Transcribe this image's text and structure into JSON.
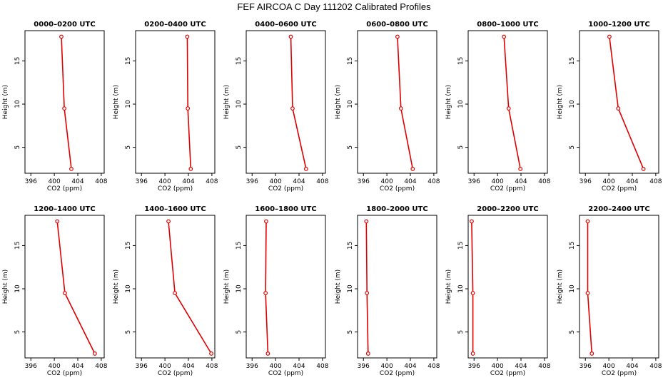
{
  "title": "FEF AIRCOA C  Day 111202  Calibrated Profiles",
  "chart_data": [
    {
      "type": "line",
      "title": "0000–0200 UTC",
      "xlabel": "CO2 (ppm)",
      "ylabel": "Height (m)",
      "xlim": [
        395,
        408.5
      ],
      "ylim": [
        2,
        18.5
      ],
      "xticks": [
        396,
        400,
        404,
        408
      ],
      "yticks": [
        5,
        10,
        15
      ],
      "series": [
        {
          "x": [
            401.2,
            401.7,
            402.9
          ],
          "y": [
            17.8,
            9.5,
            2.5
          ]
        }
      ]
    },
    {
      "type": "line",
      "title": "0200–0400 UTC",
      "xlabel": "CO2 (ppm)",
      "ylabel": "Height (m)",
      "xlim": [
        395,
        408.5
      ],
      "ylim": [
        2,
        18.5
      ],
      "xticks": [
        396,
        400,
        404,
        408
      ],
      "yticks": [
        5,
        10,
        15
      ],
      "series": [
        {
          "x": [
            403.8,
            403.9,
            404.4
          ],
          "y": [
            17.8,
            9.5,
            2.5
          ]
        }
      ]
    },
    {
      "type": "line",
      "title": "0400–0600 UTC",
      "xlabel": "CO2 (ppm)",
      "ylabel": "Height (m)",
      "xlim": [
        395,
        408.5
      ],
      "ylim": [
        2,
        18.5
      ],
      "xticks": [
        396,
        400,
        404,
        408
      ],
      "yticks": [
        5,
        10,
        15
      ],
      "series": [
        {
          "x": [
            402.6,
            402.9,
            405.2
          ],
          "y": [
            17.8,
            9.5,
            2.5
          ]
        }
      ]
    },
    {
      "type": "line",
      "title": "0600–0800 UTC",
      "xlabel": "CO2 (ppm)",
      "ylabel": "Height (m)",
      "xlim": [
        395,
        408.5
      ],
      "ylim": [
        2,
        18.5
      ],
      "xticks": [
        396,
        400,
        404,
        408
      ],
      "yticks": [
        5,
        10,
        15
      ],
      "series": [
        {
          "x": [
            401.8,
            402.4,
            404.4
          ],
          "y": [
            17.8,
            9.5,
            2.5
          ]
        }
      ]
    },
    {
      "type": "line",
      "title": "0800–1000 UTC",
      "xlabel": "CO2 (ppm)",
      "ylabel": "Height (m)",
      "xlim": [
        395,
        408.5
      ],
      "ylim": [
        2,
        18.5
      ],
      "xticks": [
        396,
        400,
        404,
        408
      ],
      "yticks": [
        5,
        10,
        15
      ],
      "series": [
        {
          "x": [
            401.1,
            401.9,
            403.9
          ],
          "y": [
            17.8,
            9.5,
            2.5
          ]
        }
      ]
    },
    {
      "type": "line",
      "title": "1000–1200 UTC",
      "xlabel": "CO2 (ppm)",
      "ylabel": "Height (m)",
      "xlim": [
        395,
        408.5
      ],
      "ylim": [
        2,
        18.5
      ],
      "xticks": [
        396,
        400,
        404,
        408
      ],
      "yticks": [
        5,
        10,
        15
      ],
      "series": [
        {
          "x": [
            400.1,
            401.6,
            405.9
          ],
          "y": [
            17.8,
            9.5,
            2.5
          ]
        }
      ]
    },
    {
      "type": "line",
      "title": "1200–1400 UTC",
      "xlabel": "CO2 (ppm)",
      "ylabel": "Height (m)",
      "xlim": [
        395,
        408.5
      ],
      "ylim": [
        2,
        18.5
      ],
      "xticks": [
        396,
        400,
        404,
        408
      ],
      "yticks": [
        5,
        10,
        15
      ],
      "series": [
        {
          "x": [
            400.5,
            401.8,
            406.9
          ],
          "y": [
            17.8,
            9.5,
            2.5
          ]
        }
      ]
    },
    {
      "type": "line",
      "title": "1400–1600 UTC",
      "xlabel": "CO2 (ppm)",
      "ylabel": "Height (m)",
      "xlim": [
        395,
        408.5
      ],
      "ylim": [
        2,
        18.5
      ],
      "xticks": [
        396,
        400,
        404,
        408
      ],
      "yticks": [
        5,
        10,
        15
      ],
      "series": [
        {
          "x": [
            400.6,
            401.7,
            407.9
          ],
          "y": [
            17.8,
            9.5,
            2.5
          ]
        }
      ]
    },
    {
      "type": "line",
      "title": "1600–1800 UTC",
      "xlabel": "CO2 (ppm)",
      "ylabel": "Height (m)",
      "xlim": [
        395,
        408.5
      ],
      "ylim": [
        2,
        18.5
      ],
      "xticks": [
        396,
        400,
        404,
        408
      ],
      "yticks": [
        5,
        10,
        15
      ],
      "series": [
        {
          "x": [
            398.4,
            398.3,
            398.7
          ],
          "y": [
            17.8,
            9.5,
            2.5
          ]
        }
      ]
    },
    {
      "type": "line",
      "title": "1800–2000 UTC",
      "xlabel": "CO2 (ppm)",
      "ylabel": "Height (m)",
      "xlim": [
        395,
        408.5
      ],
      "ylim": [
        2,
        18.5
      ],
      "xticks": [
        396,
        400,
        404,
        408
      ],
      "yticks": [
        5,
        10,
        15
      ],
      "series": [
        {
          "x": [
            396.5,
            396.6,
            396.8
          ],
          "y": [
            17.8,
            9.5,
            2.5
          ]
        }
      ]
    },
    {
      "type": "line",
      "title": "2000–2200 UTC",
      "xlabel": "CO2 (ppm)",
      "ylabel": "Height (m)",
      "xlim": [
        395,
        408.5
      ],
      "ylim": [
        2,
        18.5
      ],
      "xticks": [
        396,
        400,
        404,
        408
      ],
      "yticks": [
        5,
        10,
        15
      ],
      "series": [
        {
          "x": [
            395.6,
            395.8,
            395.8
          ],
          "y": [
            17.8,
            9.5,
            2.5
          ]
        }
      ]
    },
    {
      "type": "line",
      "title": "2200–2400 UTC",
      "xlabel": "CO2 (ppm)",
      "ylabel": "Height (m)",
      "xlim": [
        395,
        408.5
      ],
      "ylim": [
        2,
        18.5
      ],
      "xticks": [
        396,
        400,
        404,
        408
      ],
      "yticks": [
        5,
        10,
        15
      ],
      "series": [
        {
          "x": [
            396.4,
            396.4,
            397.1
          ],
          "y": [
            17.8,
            9.5,
            2.5
          ]
        }
      ]
    }
  ],
  "colors": {
    "line": "#dd0000",
    "axis": "#000000"
  }
}
